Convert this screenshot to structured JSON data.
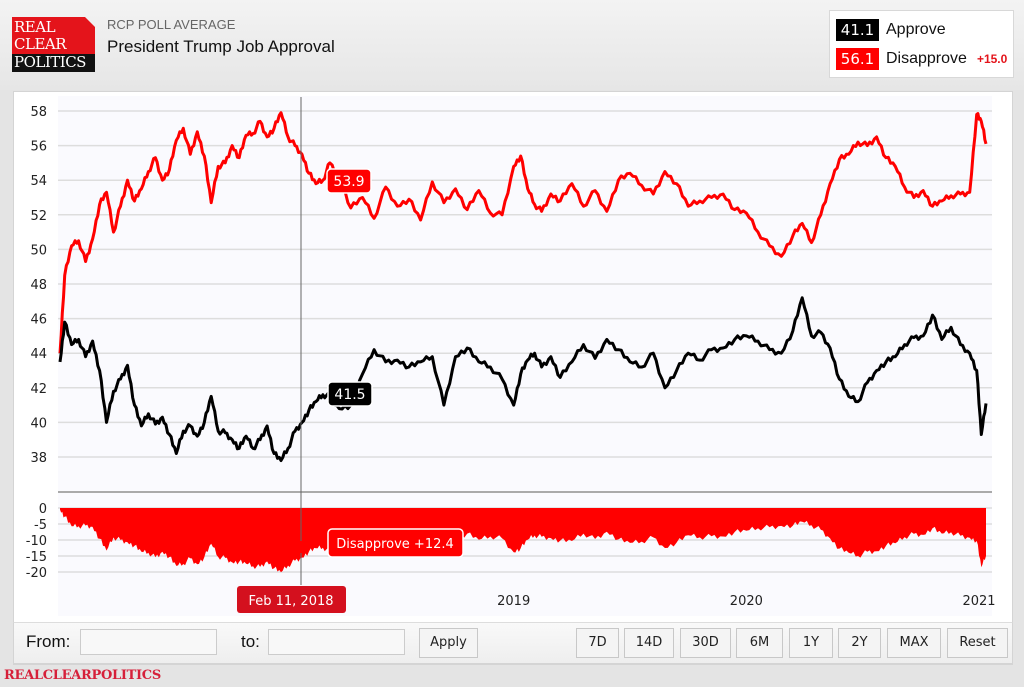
{
  "header": {
    "logo_lines": [
      "REAL",
      "CLEAR",
      "POLITICS"
    ],
    "supertitle": "RCP POLL AVERAGE",
    "title": "President Trump Job Approval"
  },
  "legend": {
    "approve": {
      "value": "41.1",
      "label": "Approve",
      "color": "#000000"
    },
    "disapprove": {
      "value": "56.1",
      "label": "Disapprove",
      "color": "#ff0000",
      "spread": "+15.0"
    }
  },
  "hover": {
    "date_label": "Feb 11, 2018",
    "approve_value": "41.5",
    "disapprove_value": "53.9",
    "spread_label": "Disapprove +12.4"
  },
  "controls": {
    "from_label": "From:",
    "from_value": "",
    "to_label": "to:",
    "to_value": "",
    "apply_label": "Apply",
    "range_buttons": [
      "7D",
      "14D",
      "30D",
      "6M",
      "1Y",
      "2Y",
      "MAX",
      "Reset"
    ]
  },
  "footer": {
    "brand": "REALCLEARPOLITICS"
  },
  "chart_data": [
    {
      "type": "line",
      "title": "President Trump Job Approval",
      "x_unit": "year (decimal)",
      "xlim": [
        2017.05,
        2021.03
      ],
      "x_tick_labels": [
        "2019",
        "2020",
        "2021"
      ],
      "x_ticks": [
        2019,
        2020,
        2021
      ],
      "ylim": [
        37,
        59
      ],
      "y_ticks": [
        38,
        40,
        42,
        44,
        46,
        48,
        50,
        52,
        54,
        56,
        58
      ],
      "grid": true,
      "legend_position": "top-right",
      "series": [
        {
          "name": "Disapprove",
          "color": "#ff0000",
          "x": [
            2017.05,
            2017.07,
            2017.1,
            2017.13,
            2017.16,
            2017.19,
            2017.22,
            2017.25,
            2017.28,
            2017.31,
            2017.34,
            2017.37,
            2017.4,
            2017.43,
            2017.46,
            2017.49,
            2017.52,
            2017.55,
            2017.58,
            2017.61,
            2017.64,
            2017.67,
            2017.7,
            2017.73,
            2017.76,
            2017.79,
            2017.82,
            2017.85,
            2017.88,
            2017.91,
            2017.94,
            2017.97,
            2018.0,
            2018.03,
            2018.06,
            2018.09,
            2018.12,
            2018.15,
            2018.18,
            2018.21,
            2018.25,
            2018.3,
            2018.35,
            2018.4,
            2018.45,
            2018.5,
            2018.55,
            2018.6,
            2018.65,
            2018.7,
            2018.75,
            2018.8,
            2018.85,
            2018.9,
            2018.95,
            2019.0,
            2019.03,
            2019.06,
            2019.09,
            2019.12,
            2019.16,
            2019.2,
            2019.25,
            2019.3,
            2019.35,
            2019.4,
            2019.45,
            2019.5,
            2019.55,
            2019.6,
            2019.65,
            2019.7,
            2019.75,
            2019.8,
            2019.85,
            2019.9,
            2019.95,
            2020.0,
            2020.05,
            2020.1,
            2020.15,
            2020.2,
            2020.24,
            2020.28,
            2020.32,
            2020.36,
            2020.4,
            2020.44,
            2020.48,
            2020.52,
            2020.56,
            2020.6,
            2020.64,
            2020.68,
            2020.72,
            2020.76,
            2020.8,
            2020.84,
            2020.88,
            2020.92,
            2020.96,
            2020.99,
            2021.01,
            2021.03
          ],
          "values": [
            44.0,
            48.5,
            50.2,
            50.5,
            49.3,
            50.6,
            52.6,
            53.3,
            51.0,
            52.5,
            54.0,
            52.8,
            53.5,
            54.5,
            55.3,
            54.0,
            54.6,
            56.3,
            57.0,
            55.5,
            56.8,
            55.4,
            52.7,
            54.8,
            55.0,
            56.0,
            55.3,
            56.6,
            56.7,
            57.4,
            56.5,
            57.0,
            57.9,
            56.5,
            56.0,
            55.5,
            54.4,
            53.8,
            54.0,
            55.0,
            54.2,
            52.4,
            53.0,
            51.8,
            53.6,
            52.5,
            52.9,
            51.7,
            53.9,
            52.7,
            53.5,
            52.3,
            53.4,
            52.1,
            52.0,
            54.8,
            55.4,
            53.5,
            52.6,
            52.2,
            53.2,
            52.8,
            53.8,
            52.5,
            53.4,
            52.2,
            54.0,
            54.4,
            53.7,
            53.2,
            54.5,
            53.8,
            52.5,
            52.8,
            53.0,
            53.2,
            52.3,
            52.1,
            51.0,
            50.2,
            49.6,
            50.8,
            51.5,
            50.4,
            52.0,
            53.8,
            55.2,
            55.5,
            56.2,
            56.0,
            56.5,
            55.3,
            54.8,
            53.6,
            53.0,
            53.4,
            52.5,
            52.8,
            53.1,
            53.2,
            53.3,
            57.8,
            57.4,
            56.1
          ]
        },
        {
          "name": "Approve",
          "color": "#000000",
          "x": [
            2017.05,
            2017.07,
            2017.1,
            2017.13,
            2017.16,
            2017.19,
            2017.22,
            2017.25,
            2017.28,
            2017.31,
            2017.34,
            2017.37,
            2017.4,
            2017.43,
            2017.46,
            2017.49,
            2017.52,
            2017.55,
            2017.58,
            2017.61,
            2017.64,
            2017.67,
            2017.7,
            2017.73,
            2017.76,
            2017.79,
            2017.82,
            2017.85,
            2017.88,
            2017.91,
            2017.94,
            2017.97,
            2018.0,
            2018.03,
            2018.06,
            2018.09,
            2018.12,
            2018.15,
            2018.18,
            2018.21,
            2018.25,
            2018.3,
            2018.35,
            2018.4,
            2018.45,
            2018.5,
            2018.55,
            2018.6,
            2018.65,
            2018.7,
            2018.75,
            2018.8,
            2018.85,
            2018.9,
            2018.95,
            2019.0,
            2019.03,
            2019.06,
            2019.09,
            2019.12,
            2019.16,
            2019.2,
            2019.25,
            2019.3,
            2019.35,
            2019.4,
            2019.45,
            2019.5,
            2019.55,
            2019.6,
            2019.65,
            2019.7,
            2019.75,
            2019.8,
            2019.85,
            2019.9,
            2019.95,
            2020.0,
            2020.05,
            2020.1,
            2020.15,
            2020.2,
            2020.24,
            2020.28,
            2020.32,
            2020.36,
            2020.4,
            2020.44,
            2020.48,
            2020.52,
            2020.56,
            2020.6,
            2020.64,
            2020.68,
            2020.72,
            2020.76,
            2020.8,
            2020.84,
            2020.88,
            2020.92,
            2020.96,
            2020.99,
            2021.01,
            2021.03
          ],
          "values": [
            43.5,
            45.8,
            44.5,
            44.8,
            43.8,
            44.7,
            43.0,
            40.0,
            41.8,
            42.5,
            43.3,
            41.0,
            39.8,
            40.5,
            39.9,
            40.3,
            39.3,
            38.2,
            39.5,
            39.8,
            39.2,
            40.0,
            41.5,
            39.5,
            39.4,
            39.0,
            38.5,
            39.2,
            38.5,
            39.0,
            39.8,
            38.2,
            37.8,
            38.5,
            39.5,
            40.0,
            40.7,
            41.2,
            41.6,
            41.5,
            40.8,
            41.0,
            42.8,
            44.2,
            43.5,
            43.6,
            43.2,
            43.5,
            43.8,
            41.0,
            43.8,
            44.3,
            43.5,
            43.2,
            42.5,
            41.0,
            42.8,
            43.6,
            44.0,
            43.2,
            43.8,
            42.6,
            43.5,
            44.5,
            43.7,
            44.8,
            44.2,
            43.5,
            43.2,
            44.0,
            42.0,
            43.0,
            44.0,
            43.6,
            44.2,
            44.3,
            44.8,
            45.0,
            44.7,
            44.2,
            44.0,
            45.3,
            47.2,
            45.0,
            45.2,
            44.3,
            42.5,
            41.5,
            41.2,
            42.3,
            43.0,
            43.5,
            43.8,
            44.5,
            44.9,
            45.0,
            46.2,
            44.8,
            45.5,
            44.5,
            44.0,
            43.0,
            39.3,
            41.1
          ]
        }
      ]
    },
    {
      "type": "area",
      "title": "Spread",
      "ylim": [
        -22,
        1
      ],
      "y_ticks": [
        0,
        -5,
        -10,
        -15,
        -20
      ],
      "grid": true,
      "series": [
        {
          "name": "Spread (Approve - Disapprove)",
          "color": "#ff0000",
          "x": [
            2017.05,
            2017.07,
            2017.1,
            2017.13,
            2017.16,
            2017.19,
            2017.22,
            2017.25,
            2017.28,
            2017.31,
            2017.34,
            2017.37,
            2017.4,
            2017.43,
            2017.46,
            2017.49,
            2017.52,
            2017.55,
            2017.58,
            2017.61,
            2017.64,
            2017.67,
            2017.7,
            2017.73,
            2017.76,
            2017.79,
            2017.82,
            2017.85,
            2017.88,
            2017.91,
            2017.94,
            2017.97,
            2018.0,
            2018.03,
            2018.06,
            2018.09,
            2018.12,
            2018.15,
            2018.18,
            2018.21,
            2018.25,
            2018.3,
            2018.35,
            2018.4,
            2018.45,
            2018.5,
            2018.55,
            2018.6,
            2018.65,
            2018.7,
            2018.75,
            2018.8,
            2018.85,
            2018.9,
            2018.95,
            2019.0,
            2019.03,
            2019.06,
            2019.09,
            2019.12,
            2019.16,
            2019.2,
            2019.25,
            2019.3,
            2019.35,
            2019.4,
            2019.45,
            2019.5,
            2019.55,
            2019.6,
            2019.65,
            2019.7,
            2019.75,
            2019.8,
            2019.85,
            2019.9,
            2019.95,
            2020.0,
            2020.05,
            2020.1,
            2020.15,
            2020.2,
            2020.24,
            2020.28,
            2020.32,
            2020.36,
            2020.4,
            2020.44,
            2020.48,
            2020.52,
            2020.56,
            2020.6,
            2020.64,
            2020.68,
            2020.72,
            2020.76,
            2020.8,
            2020.84,
            2020.88,
            2020.92,
            2020.96,
            2020.99,
            2021.01,
            2021.03
          ],
          "values": [
            -0.5,
            -2.7,
            -5.7,
            -5.7,
            -5.5,
            -5.9,
            -9.6,
            -13.3,
            -9.2,
            -10.0,
            -10.7,
            -11.8,
            -13.7,
            -14.0,
            -15.4,
            -13.7,
            -15.3,
            -18.1,
            -17.5,
            -15.7,
            -17.6,
            -15.4,
            -11.2,
            -15.3,
            -15.6,
            -17.0,
            -16.8,
            -17.4,
            -18.2,
            -18.4,
            -16.7,
            -18.8,
            -20.1,
            -18.0,
            -16.5,
            -15.5,
            -13.7,
            -12.6,
            -12.4,
            -13.5,
            -13.4,
            -11.4,
            -10.2,
            -7.6,
            -10.1,
            -8.9,
            -9.7,
            -8.2,
            -10.1,
            -11.7,
            -9.7,
            -8.0,
            -9.9,
            -8.9,
            -9.5,
            -13.8,
            -12.6,
            -9.9,
            -8.6,
            -9.0,
            -9.4,
            -10.2,
            -10.3,
            -8.0,
            -9.7,
            -7.4,
            -9.8,
            -10.9,
            -10.5,
            -9.2,
            -12.5,
            -10.8,
            -8.5,
            -9.2,
            -8.8,
            -8.9,
            -7.5,
            -7.1,
            -6.3,
            -6.0,
            -5.6,
            -5.5,
            -4.3,
            -5.4,
            -6.8,
            -9.5,
            -12.7,
            -14.0,
            -15.0,
            -13.7,
            -13.5,
            -11.8,
            -11.0,
            -9.1,
            -8.1,
            -8.4,
            -6.3,
            -8.0,
            -7.6,
            -8.7,
            -9.3,
            -10.3,
            -18.5,
            -15.0
          ]
        }
      ]
    }
  ]
}
